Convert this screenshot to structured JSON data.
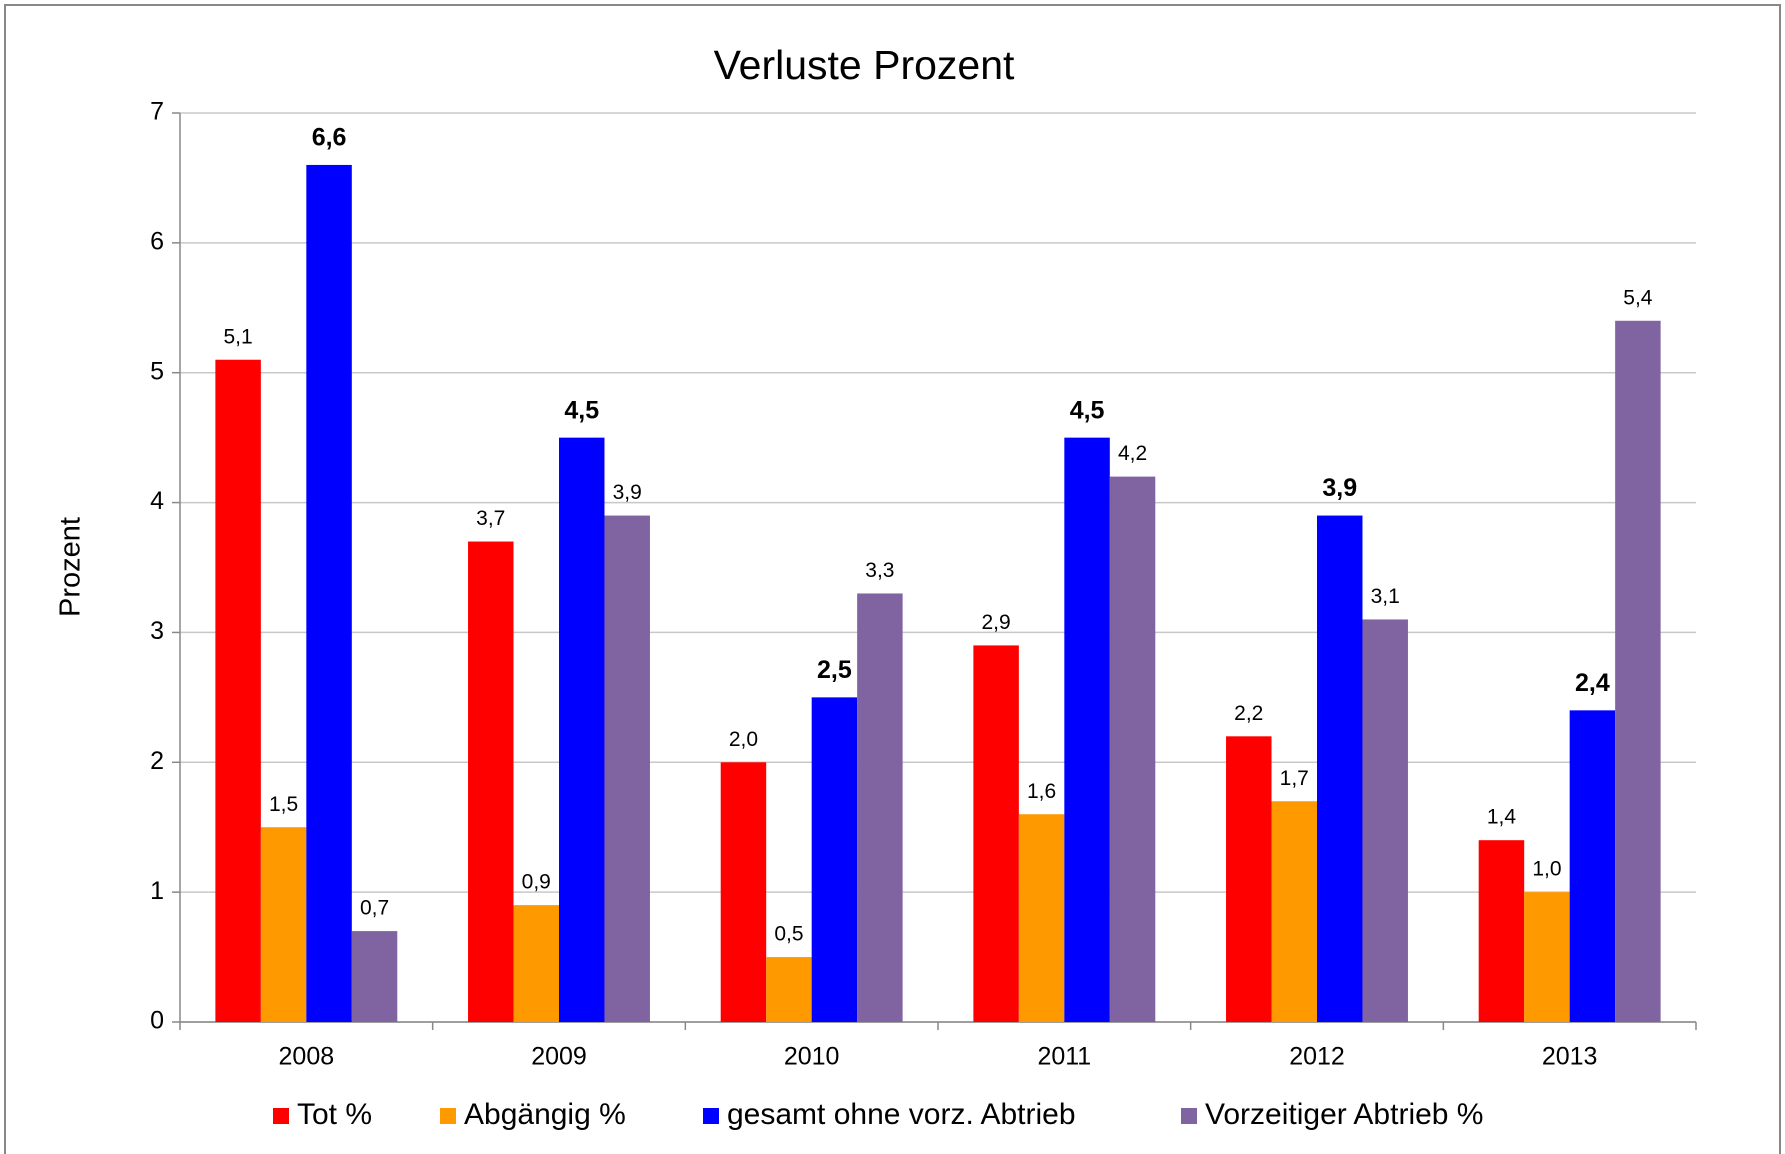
{
  "chart_data": {
    "type": "bar",
    "title": "Verluste Prozent",
    "y_label": "Prozent",
    "categories": [
      "2008",
      "2009",
      "2010",
      "2011",
      "2012",
      "2013"
    ],
    "series": [
      {
        "name": "Tot %",
        "color": "#ff0000",
        "values": [
          5.1,
          3.7,
          2.0,
          2.9,
          2.2,
          1.4
        ],
        "value_labels": [
          "5,1",
          "3,7",
          "2,0",
          "2,9",
          "2,2",
          "1,4"
        ]
      },
      {
        "name": "Abgängig %",
        "color": "#ff9900",
        "values": [
          1.5,
          0.9,
          0.5,
          1.6,
          1.7,
          1.0
        ],
        "value_labels": [
          "1,5",
          "0,9",
          "0,5",
          "1,6",
          "1,7",
          "1,0"
        ]
      },
      {
        "name": "gesamt ohne vorz. Abtrieb",
        "color": "#0000ff",
        "bold_labels": true,
        "values": [
          6.6,
          4.5,
          2.5,
          4.5,
          3.9,
          2.4
        ],
        "value_labels": [
          "6,6",
          "4,5",
          "2,5",
          "4,5",
          "3,9",
          "2,4"
        ]
      },
      {
        "name": "Vorzeitiger Abtrieb %",
        "color": "#8064a2",
        "values": [
          0.7,
          3.9,
          3.3,
          4.2,
          3.1,
          5.4
        ],
        "value_labels": [
          "0,7",
          "3,9",
          "3,3",
          "4,2",
          "3,1",
          "5,4"
        ]
      }
    ],
    "ylim": [
      0,
      7
    ],
    "yticks": [
      0,
      1,
      2,
      3,
      4,
      5,
      6,
      7
    ],
    "grid": true,
    "legend": "bottom"
  }
}
